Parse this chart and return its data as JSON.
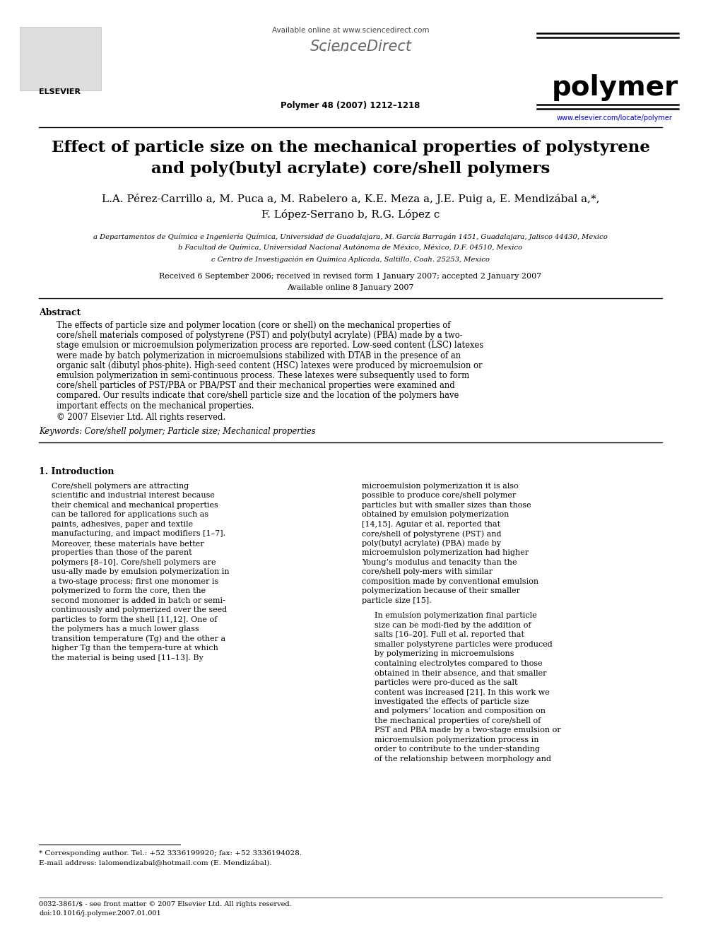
{
  "background_color": "#ffffff",
  "page_width": 9.92,
  "page_height": 13.23,
  "header_available_online": "Available online at www.sciencedirect.com",
  "header_sciencedirect": "ScienceDirect",
  "header_journal_name": "polymer",
  "header_journal_info": "Polymer 48 (2007) 1212–1218",
  "header_journal_url": "www.elsevier.com/locate/polymer",
  "header_elsevier": "ELSEVIER",
  "title_line1": "Effect of particle size on the mechanical properties of polystyrene",
  "title_line2": "and poly(butyl acrylate) core/shell polymers",
  "authors_line1": "L.A. Pérez-Carrillo a, M. Puca a, M. Rabelero a, K.E. Meza a, J.E. Puig a, E. Mendizábal a,*,",
  "authors_line2": "F. López-Serrano b, R.G. López c",
  "affil_a": "a Departamentos de Química e Ingeniería Química, Universidad de Guadalajara, M. García Barragán 1451, Guadalajara, Jalisco 44430, Mexico",
  "affil_b": "b Facultad de Química, Universidad Nacional Autónoma de México, México, D.F. 04510, Mexico",
  "affil_c": "c Centro de Investigación en Química Aplicada, Saltillo, Coah. 25253, Mexico",
  "dates_line1": "Received 6 September 2006; received in revised form 1 January 2007; accepted 2 January 2007",
  "dates_line2": "Available online 8 January 2007",
  "abstract_title": "Abstract",
  "abstract_p1": "The effects of particle size and polymer location (core or shell) on the mechanical properties of core/shell materials composed of polystyrene (PST) and poly(butyl acrylate) (PBA) made by a two-stage emulsion or microemulsion polymerization process are reported. Low-seed content (LSC) latexes were made by batch polymerization in microemulsions stabilized with DTAB in the presence of an organic salt (dibutyl phos-phite). High-seed content (HSC) latexes were produced by microemulsion or emulsion polymerization in semi-continuous process. These latexes were subsequently used to form core/shell particles of PST/PBA or PBA/PST and their mechanical properties were examined and compared. Our results indicate that core/shell particle size and the location of the polymers have important effects on the mechanical properties.",
  "abstract_p2": "© 2007 Elsevier Ltd. All rights reserved.",
  "keywords": "Keywords: Core/shell polymer; Particle size; Mechanical properties",
  "section1_title": "1. Introduction",
  "col1_para1": "Core/shell polymers are attracting scientific and industrial interest because their chemical and mechanical properties can be tailored for applications such as paints, adhesives, paper and textile manufacturing, and impact modifiers [1–7]. Moreover, these materials have better properties than those of the parent polymers [8–10]. Core/shell polymers are usu-ally made by emulsion polymerization in a two-stage process; first one monomer is polymerized to form the core, then the second monomer is added in batch or semi-continuously and polymerized over the seed particles to form the shell [11,12]. One of the polymers has a much lower glass transition temperature (Tg) and the other a higher Tg than the tempera-ture at which the material is being used [11–13]. By",
  "col2_para1": "microemulsion polymerization it is also possible to produce core/shell polymer particles but with smaller sizes than those obtained by emulsion polymerization [14,15]. Aguiar et al. reported that core/shell of polystyrene (PST) and poly(butyl acrylate) (PBA) made by microemulsion polymerization had higher Young’s modulus and tenacity than the core/shell poly-mers with similar composition made by conventional emulsion polymerization because of their smaller particle size [15].",
  "col2_para2": "In emulsion polymerization final particle size can be modi-fied by the addition of salts [16–20]. Full et al. reported that smaller polystyrene particles were produced by polymerizing in microemulsions containing electrolytes compared to those obtained in their absence, and that smaller particles were pro-duced as the salt content was increased [21]. In this work we investigated the effects of particle size and polymers’ location and composition on the mechanical properties of core/shell of PST and PBA made by a two-stage emulsion or microemulsion polymerization process in order to contribute to the under-standing of the relationship between morphology and",
  "footnote_text": "* Corresponding author. Tel.: +52 3336199920; fax: +52 3336194028.\n  E-mail address: lalomendizabal@hotmail.com (E. Mendizábal).",
  "footer_issn": "0032-3861/$ - see front matter © 2007 Elsevier Ltd. All rights reserved.",
  "footer_doi": "doi:10.1016/j.polymer.2007.01.001"
}
